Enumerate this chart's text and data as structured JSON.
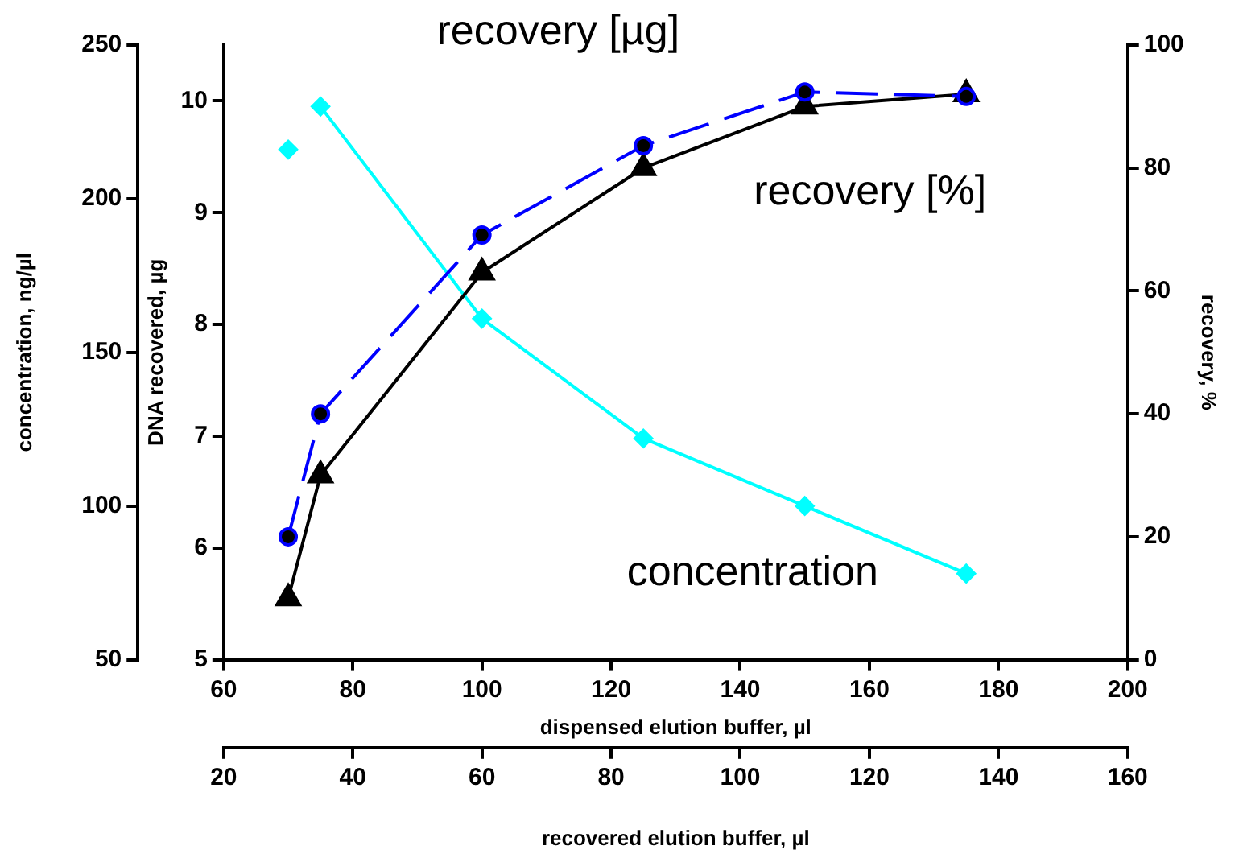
{
  "chart_data": {
    "type": "line",
    "xlabel": "dispensed elution buffer, µl",
    "ylabel": "DNA recovered, µg",
    "y2label": "recovery, %",
    "y3label": "concentration, ng/µl",
    "x2label": "recovered elution buffer, µl",
    "x": [
      70,
      75,
      100,
      125,
      150,
      175
    ],
    "series": [
      {
        "name": "recovery [µg]",
        "color": "#0000ff",
        "values": [
          6.1,
          7.2,
          8.8,
          9.6,
          10.08,
          10.04
        ],
        "marker": "circle",
        "line_style": "dashed"
      },
      {
        "name": "recovery [%]",
        "color": "#000000",
        "axis": "y2",
        "values": [
          10,
          30,
          63,
          80,
          90,
          92
        ],
        "marker": "triangle",
        "line_style": "solid"
      },
      {
        "name": "concentration",
        "color": "#00ffff",
        "axis": "y3",
        "x": [
          75,
          100,
          125,
          150,
          175
        ],
        "values": [
          230,
          161,
          122,
          100,
          78
        ],
        "marker": "diamond",
        "line_style": "solid"
      },
      {
        "type": "scatter",
        "color": "#00ffff",
        "axis": "y3",
        "x": [
          70
        ],
        "values": [
          216
        ],
        "marker": "diamond"
      }
    ],
    "xlim": [
      60,
      200
    ],
    "xticks": [
      60,
      80,
      100,
      120,
      140,
      160,
      180,
      200
    ],
    "x2lim": [
      20,
      160
    ],
    "x2ticks": [
      20,
      40,
      60,
      80,
      100,
      120,
      140,
      160
    ],
    "ylim": [
      5,
      10.5
    ],
    "yticks": [
      5,
      6,
      7,
      8,
      9,
      10
    ],
    "y2lim": [
      0,
      100
    ],
    "y2ticks": [
      0,
      20,
      40,
      60,
      80,
      100
    ],
    "y3lim": [
      50,
      250
    ],
    "y3ticks": [
      50,
      100,
      150,
      200,
      250
    ],
    "grid": false,
    "legend": false
  }
}
